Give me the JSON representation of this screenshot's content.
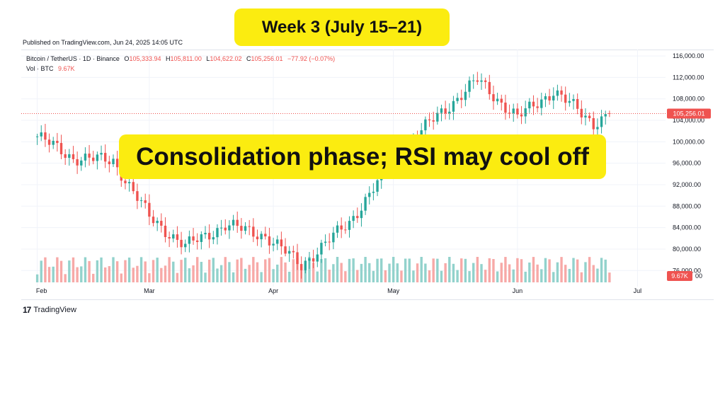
{
  "header": {
    "published": "Published on TradingView.com, Jun 24, 2025 14:05 UTC",
    "week_banner": "Week 3 (July 15–21)",
    "caption": "Consolidation phase; RSI may cool off"
  },
  "legend": {
    "symbol": "Bitcoin / TetherUS · 1D · Binance",
    "o_label": "O",
    "o_value": "105,333.94",
    "h_label": "H",
    "h_value": "105,811.00",
    "l_label": "L",
    "l_value": "104,622.02",
    "c_label": "C",
    "c_value": "105,256.01",
    "change": "−77.92 (−0.07%)",
    "vol_label": "Vol · BTC",
    "vol_value": "9.67K"
  },
  "price_tag": "105,256.01",
  "volume_tag": "9.67K",
  "footer": {
    "brand": "TradingView",
    "logo_mark": "17"
  },
  "colors": {
    "up": "#26a69a",
    "down": "#ef5350",
    "up_vol": "#92d2cc",
    "down_vol": "#f7a9a7",
    "banner": "#fbec10"
  },
  "chart_data": {
    "type": "candlestick",
    "title": "",
    "x_ticks": [
      "Feb",
      "Mar",
      "Apr",
      "May",
      "Jun",
      "Jul"
    ],
    "y_ticks": [
      "116,000.00",
      "112,000.00",
      "108,000.00",
      "104,000.00",
      "100,000.00",
      "96,000.00",
      "92,000.00",
      "88,000.00",
      "84,000.00",
      "80,000.00",
      "76,000.00"
    ],
    "y_tick_values": [
      116000,
      112000,
      108000,
      104000,
      100000,
      96000,
      92000,
      88000,
      84000,
      80000,
      76000
    ],
    "volume_axis_label": "00",
    "ylim": [
      73000,
      117200
    ],
    "x_range": [
      "2025-01-28",
      "2025-07-08"
    ],
    "last_price": 105256.01,
    "grid": true,
    "series_approx_close": [
      {
        "date": "2025-02-01",
        "close": 101000
      },
      {
        "date": "2025-02-10",
        "close": 97000
      },
      {
        "date": "2025-02-20",
        "close": 96500
      },
      {
        "date": "2025-03-01",
        "close": 86000
      },
      {
        "date": "2025-03-10",
        "close": 80500
      },
      {
        "date": "2025-03-20",
        "close": 84500
      },
      {
        "date": "2025-03-30",
        "close": 82500
      },
      {
        "date": "2025-04-08",
        "close": 77000
      },
      {
        "date": "2025-04-20",
        "close": 85000
      },
      {
        "date": "2025-05-01",
        "close": 96500
      },
      {
        "date": "2025-05-10",
        "close": 103500
      },
      {
        "date": "2025-05-22",
        "close": 111500
      },
      {
        "date": "2025-06-01",
        "close": 104500
      },
      {
        "date": "2025-06-10",
        "close": 109500
      },
      {
        "date": "2025-06-20",
        "close": 103500
      },
      {
        "date": "2025-06-24",
        "close": 105256
      }
    ]
  }
}
